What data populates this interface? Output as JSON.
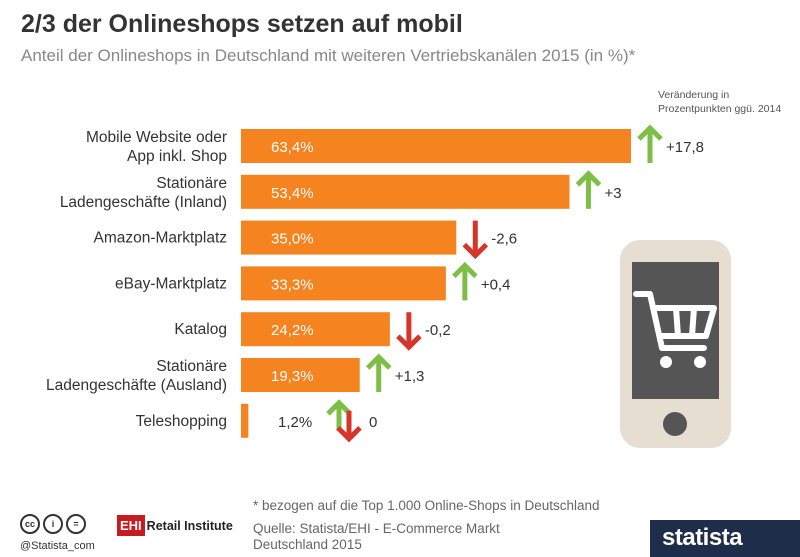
{
  "header": {
    "title": "2/3 der Onlineshops setzen auf mobil",
    "subtitle": "Anteil der Onlineshops in Deutschland mit weiteren Vertriebskanälen 2015 (in %)*",
    "change_line1": "Veränderung in",
    "change_line2": "Prozentpunkten ggü. 2014"
  },
  "colors": {
    "bar": "#f5831f",
    "up": "#7dbf45",
    "down": "#d8352a",
    "phone_body": "#e6dfd1",
    "phone_screen": "#555555"
  },
  "icons": [
    "arrow-up-icon",
    "arrow-down-icon",
    "phone-cart-icon",
    "cc-icon",
    "by-icon",
    "nd-icon"
  ],
  "chart_data": {
    "type": "bar",
    "orientation": "horizontal",
    "categories": [
      [
        "Mobile Website oder",
        "App inkl. Shop"
      ],
      [
        "Stationäre",
        "Ladengeschäfte (Inland)"
      ],
      [
        "Amazon-Marktplatz"
      ],
      [
        "eBay-Marktplatz"
      ],
      [
        "Katalog"
      ],
      [
        "Stationäre",
        "Ladengeschäfte (Ausland)"
      ],
      [
        "Teleshopping"
      ]
    ],
    "values": [
      63.4,
      53.4,
      35.0,
      33.3,
      24.2,
      19.3,
      1.2
    ],
    "value_labels": [
      "63,4%",
      "53,4%",
      "35,0%",
      "33,3%",
      "24,2%",
      "19,3%",
      "1,2%"
    ],
    "changes": [
      17.8,
      3,
      -2.6,
      0.4,
      -0.2,
      1.3,
      0
    ],
    "change_labels": [
      "+17,8",
      "+3",
      "-2,6",
      "+0,4",
      "-0,2",
      "+1,3",
      "0"
    ],
    "change_direction": [
      "up",
      "up",
      "down",
      "up",
      "down",
      "up",
      "both"
    ],
    "xlim": [
      0,
      63.4
    ],
    "grid": false
  },
  "footer": {
    "footnote": "* bezogen auf die Top 1.000 Online-Shops in Deutschland",
    "source_line1": "Quelle: Statista/EHI - E-Commerce Markt",
    "source_line2": "Deutschland 2015",
    "credit": "@Statista_com",
    "ehi_box": "EHI",
    "ehi_text": "Retail Institute",
    "brand": "statista",
    "cc_labels": [
      "cc",
      "i",
      "="
    ]
  }
}
